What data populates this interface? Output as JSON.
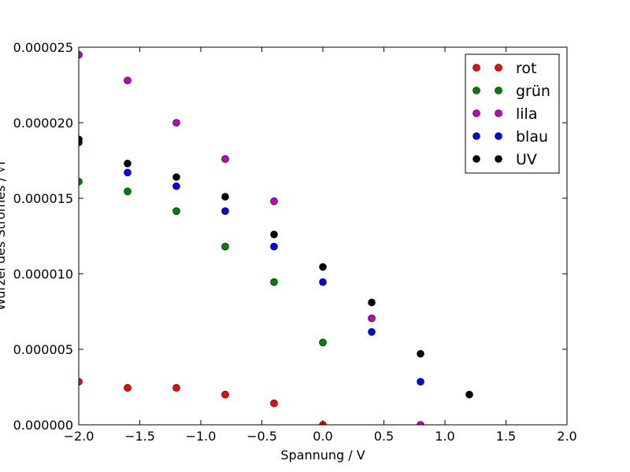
{
  "chart_data": {
    "type": "scatter",
    "xlabel": "Spannung / V",
    "ylabel": "Wurzel des Stromes / √I",
    "xlim": [
      -2.0,
      2.0
    ],
    "ylim": [
      0.0,
      2.5e-05
    ],
    "x_ticks": [
      "−2.0",
      "−1.5",
      "−1.0",
      "−0.5",
      "0.0",
      "0.5",
      "1.0",
      "1.5",
      "2.0"
    ],
    "y_ticks": [
      "0.000000",
      "0.000005",
      "0.000010",
      "0.000015",
      "0.000020",
      "0.000025"
    ],
    "grid": false,
    "legend_position": "upper-right",
    "series": [
      {
        "name": "rot",
        "color": "#ff0000",
        "x": [
          -2.0,
          -1.6,
          -1.2,
          -0.8,
          -0.4,
          0.0
        ],
        "y": [
          2.85e-06,
          2.45e-06,
          2.45e-06,
          2e-06,
          1.42e-06,
          0.0
        ]
      },
      {
        "name": "grün",
        "color": "#008000",
        "x": [
          -2.0,
          -1.6,
          -1.2,
          -0.8,
          -0.4,
          0.0
        ],
        "y": [
          1.61e-05,
          1.545e-05,
          1.415e-05,
          1.18e-05,
          9.45e-06,
          5.45e-06
        ]
      },
      {
        "name": "lila",
        "color": "#bf00bf",
        "x": [
          -2.0,
          -1.6,
          -1.2,
          -0.8,
          -0.4,
          0.4,
          0.8
        ],
        "y": [
          2.45e-05,
          2.28e-05,
          2e-05,
          1.76e-05,
          1.48e-05,
          7.05e-06,
          0.0
        ]
      },
      {
        "name": "blau",
        "color": "#0000ff",
        "x": [
          -2.0,
          -1.6,
          -1.2,
          -0.8,
          -0.4,
          0.0,
          0.4,
          0.8
        ],
        "y": [
          1.87e-05,
          1.67e-05,
          1.58e-05,
          1.415e-05,
          1.18e-05,
          9.45e-06,
          6.15e-06,
          2.85e-06
        ]
      },
      {
        "name": "UV",
        "color": "#000000",
        "x": [
          -2.0,
          -1.6,
          -1.2,
          -0.8,
          -0.4,
          0.0,
          0.4,
          0.8,
          1.2
        ],
        "y": [
          1.89e-05,
          1.73e-05,
          1.64e-05,
          1.51e-05,
          1.26e-05,
          1.045e-05,
          8.1e-06,
          4.7e-06,
          2e-06
        ]
      }
    ]
  }
}
